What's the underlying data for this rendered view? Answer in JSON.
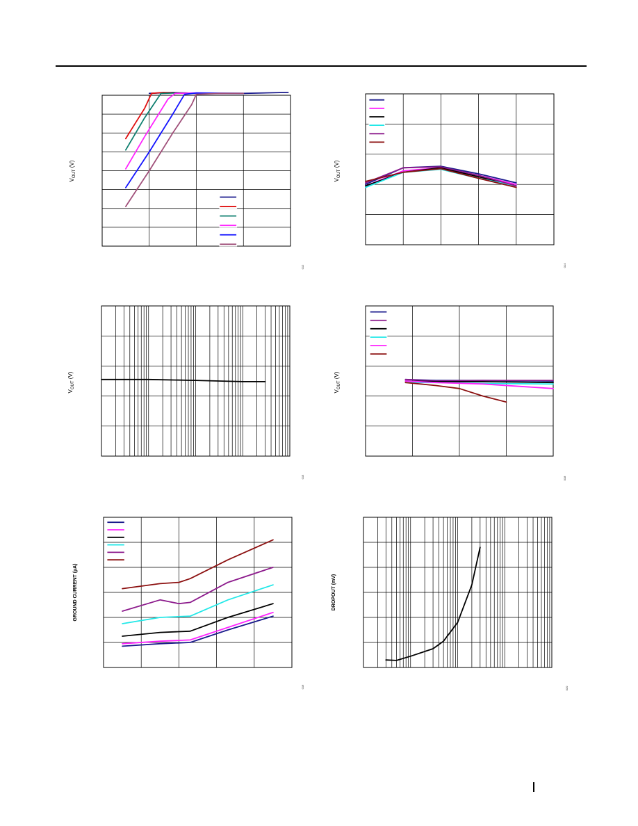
{
  "colors": {
    "navy": "#1a1a8c",
    "red": "#e01010",
    "teal": "#108070",
    "magenta": "#ff22ff",
    "blue": "#1414ff",
    "mauve": "#a0507a",
    "black": "#000000",
    "cyan": "#22e8e8",
    "purple": "#8c1a8c",
    "brown": "#8c1010"
  },
  "chart_data": [
    {
      "id": "c1",
      "type": "line",
      "ylabel": "V_OUT (V)",
      "xlim": [
        0,
        4
      ],
      "ylim": [
        0,
        8
      ],
      "xgrid": [
        1,
        2,
        3
      ],
      "ygrid": [
        1,
        2,
        3,
        4,
        5,
        6,
        7,
        8
      ],
      "legend": {
        "placement": "bottom-right",
        "x": 2.5,
        "y": 2.6,
        "dy": 0.5,
        "len": 0.35
      },
      "series": [
        {
          "color": "navy",
          "points": [
            [
              1.0,
              8.1
            ],
            [
              1.5,
              8.15
            ],
            [
              2.0,
              8.1
            ],
            [
              3.0,
              8.1
            ],
            [
              3.95,
              8.15
            ]
          ]
        },
        {
          "color": "red",
          "points": [
            [
              0.5,
              5.7
            ],
            [
              0.7,
              6.5
            ],
            [
              0.9,
              7.3
            ],
            [
              1.05,
              8.1
            ],
            [
              1.3,
              8.15
            ],
            [
              2.0,
              8.1
            ]
          ]
        },
        {
          "color": "teal",
          "points": [
            [
              0.5,
              5.1
            ],
            [
              0.9,
              6.8
            ],
            [
              1.25,
              8.1
            ],
            [
              1.6,
              8.12
            ],
            [
              2.2,
              8.1
            ]
          ]
        },
        {
          "color": "magenta",
          "points": [
            [
              0.5,
              4.1
            ],
            [
              0.9,
              5.8
            ],
            [
              1.4,
              7.8
            ],
            [
              1.55,
              8.1
            ],
            [
              2.0,
              8.12
            ],
            [
              2.6,
              8.1
            ]
          ]
        },
        {
          "color": "blue",
          "points": [
            [
              0.5,
              3.1
            ],
            [
              1.0,
              5.0
            ],
            [
              1.5,
              7.0
            ],
            [
              1.75,
              8.05
            ],
            [
              2.0,
              8.12
            ],
            [
              3.0,
              8.1
            ]
          ]
        },
        {
          "color": "mauve",
          "points": [
            [
              0.5,
              2.1
            ],
            [
              1.0,
              4.0
            ],
            [
              1.5,
              6.0
            ],
            [
              1.9,
              7.5
            ],
            [
              2.0,
              8.05
            ],
            [
              2.5,
              8.1
            ],
            [
              3.0,
              8.1
            ]
          ]
        }
      ],
      "fig_number": "012"
    },
    {
      "id": "c2",
      "type": "line",
      "ylabel": "V_OUT (V)",
      "xlim": [
        0,
        5
      ],
      "ylim": [
        0,
        5
      ],
      "xgrid": [
        1,
        2,
        3,
        4
      ],
      "ygrid": [
        1,
        2,
        3,
        4
      ],
      "legend": {
        "placement": "top-left",
        "x": 0.1,
        "y": 4.8,
        "dy": 0.28,
        "len": 0.4
      },
      "series": [
        {
          "color": "navy",
          "points": [
            [
              0,
              2.0
            ],
            [
              1,
              2.55
            ],
            [
              2,
              2.6
            ],
            [
              3,
              2.35
            ],
            [
              4,
              2.05
            ]
          ]
        },
        {
          "color": "magenta",
          "points": [
            [
              0,
              1.95
            ],
            [
              1,
              2.45
            ],
            [
              2,
              2.55
            ],
            [
              3,
              2.3
            ],
            [
              4,
              2.0
            ]
          ]
        },
        {
          "color": "black",
          "points": [
            [
              0,
              1.95
            ],
            [
              1,
              2.4
            ],
            [
              2,
              2.55
            ],
            [
              3,
              2.25
            ],
            [
              4,
              1.95
            ]
          ]
        },
        {
          "color": "cyan",
          "points": [
            [
              0,
              1.9
            ],
            [
              1,
              2.4
            ],
            [
              2,
              2.5
            ],
            [
              3,
              2.2
            ],
            [
              4,
              1.95
            ]
          ]
        },
        {
          "color": "purple",
          "points": [
            [
              0,
              2.05
            ],
            [
              1,
              2.55
            ],
            [
              2,
              2.58
            ],
            [
              3,
              2.3
            ],
            [
              4,
              1.95
            ]
          ]
        },
        {
          "color": "brown",
          "points": [
            [
              0,
              2.1
            ],
            [
              1,
              2.4
            ],
            [
              2,
              2.52
            ],
            [
              3,
              2.2
            ],
            [
              4,
              1.9
            ]
          ]
        }
      ],
      "fig_number": "014"
    },
    {
      "id": "c3",
      "type": "line",
      "ylabel": "V_OUT (V)",
      "xscale": "log",
      "xlim": [
        1,
        10000
      ],
      "ylim": [
        0,
        5
      ],
      "ygrid": [
        1,
        2,
        3,
        4
      ],
      "series": [
        {
          "color": "black",
          "points": [
            [
              1,
              2.55
            ],
            [
              10,
              2.55
            ],
            [
              100,
              2.52
            ],
            [
              1000,
              2.48
            ],
            [
              3000,
              2.48
            ]
          ]
        }
      ],
      "fig_number": "015"
    },
    {
      "id": "c4",
      "type": "line",
      "ylabel": "V_OUT (V)",
      "xlim": [
        0,
        4
      ],
      "ylim": [
        0,
        5
      ],
      "xgrid": [
        1,
        2,
        3
      ],
      "ygrid": [
        1,
        2,
        3,
        4
      ],
      "legend": {
        "placement": "top-left",
        "x": 0.1,
        "y": 4.8,
        "dy": 0.28,
        "len": 0.35
      },
      "series": [
        {
          "color": "navy",
          "points": [
            [
              0.85,
              2.55
            ],
            [
              1.5,
              2.52
            ],
            [
              2.5,
              2.52
            ],
            [
              4,
              2.5
            ]
          ]
        },
        {
          "color": "purple",
          "points": [
            [
              0.85,
              2.55
            ],
            [
              1.5,
              2.5
            ],
            [
              2.5,
              2.52
            ],
            [
              4,
              2.52
            ]
          ]
        },
        {
          "color": "black",
          "points": [
            [
              0.85,
              2.5
            ],
            [
              1.5,
              2.48
            ],
            [
              2.5,
              2.48
            ],
            [
              4,
              2.45
            ]
          ]
        },
        {
          "color": "cyan",
          "points": [
            [
              0.85,
              2.45
            ],
            [
              1.5,
              2.45
            ],
            [
              2.5,
              2.42
            ],
            [
              4,
              2.4
            ]
          ]
        },
        {
          "color": "magenta",
          "points": [
            [
              0.85,
              2.5
            ],
            [
              1.5,
              2.45
            ],
            [
              2.5,
              2.4
            ],
            [
              4,
              2.25
            ]
          ]
        },
        {
          "color": "brown",
          "points": [
            [
              0.85,
              2.45
            ],
            [
              1.5,
              2.35
            ],
            [
              2,
              2.25
            ],
            [
              2.5,
              2.0
            ],
            [
              3,
              1.8
            ]
          ]
        }
      ],
      "fig_number": "018"
    },
    {
      "id": "c5",
      "type": "line",
      "ylabel": "GROUND CURRENT (µA)",
      "xlim": [
        0,
        5
      ],
      "ylim": [
        0,
        6
      ],
      "xgrid": [
        1,
        2,
        3,
        4
      ],
      "ygrid": [
        1,
        2,
        3,
        4,
        5
      ],
      "legend": {
        "placement": "top-left",
        "x": 0.1,
        "y": 5.8,
        "dy": 0.3,
        "len": 0.45
      },
      "series": [
        {
          "color": "navy",
          "points": [
            [
              0.5,
              0.85
            ],
            [
              1.5,
              0.95
            ],
            [
              2.3,
              1.0
            ],
            [
              3.3,
              1.5
            ],
            [
              4.5,
              2.05
            ]
          ]
        },
        {
          "color": "magenta",
          "points": [
            [
              0.5,
              0.95
            ],
            [
              1.5,
              1.05
            ],
            [
              2.3,
              1.1
            ],
            [
              3.3,
              1.6
            ],
            [
              4.5,
              2.2
            ]
          ]
        },
        {
          "color": "black",
          "points": [
            [
              0.5,
              1.25
            ],
            [
              1.5,
              1.4
            ],
            [
              2.3,
              1.45
            ],
            [
              3.3,
              2.0
            ],
            [
              4.5,
              2.55
            ]
          ]
        },
        {
          "color": "cyan",
          "points": [
            [
              0.5,
              1.75
            ],
            [
              1.5,
              2.0
            ],
            [
              2.3,
              2.05
            ],
            [
              3.3,
              2.7
            ],
            [
              4.5,
              3.3
            ]
          ]
        },
        {
          "color": "purple",
          "points": [
            [
              0.5,
              2.25
            ],
            [
              1.5,
              2.7
            ],
            [
              2.0,
              2.55
            ],
            [
              2.3,
              2.6
            ],
            [
              3.3,
              3.4
            ],
            [
              4.5,
              4.0
            ]
          ]
        },
        {
          "color": "brown",
          "points": [
            [
              0.5,
              3.15
            ],
            [
              1.5,
              3.35
            ],
            [
              2.0,
              3.4
            ],
            [
              2.3,
              3.55
            ],
            [
              3.3,
              4.3
            ],
            [
              4.5,
              5.1
            ]
          ]
        }
      ],
      "fig_number": "016"
    },
    {
      "id": "c6",
      "type": "line",
      "ylabel": "DROPOUT (mV)",
      "xscale": "log",
      "xlim": [
        0.01,
        100
      ],
      "ylim": [
        0,
        6
      ],
      "ygrid": [
        1,
        2,
        3,
        4,
        5
      ],
      "series": [
        {
          "color": "black",
          "points": [
            [
              0.03,
              0.3
            ],
            [
              0.05,
              0.28
            ],
            [
              0.1,
              0.45
            ],
            [
              0.3,
              0.75
            ],
            [
              0.5,
              1.05
            ],
            [
              1,
              1.8
            ],
            [
              2,
              3.3
            ],
            [
              3,
              4.8
            ]
          ]
        }
      ],
      "fig_number": "020"
    }
  ]
}
